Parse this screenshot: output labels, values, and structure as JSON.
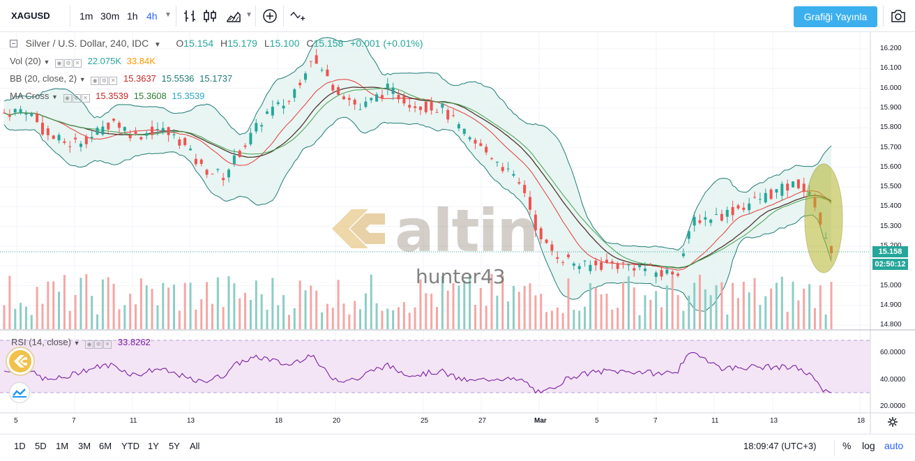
{
  "toolbar": {
    "symbol": "XAGUSD",
    "timeframes": [
      "1m",
      "30m",
      "1h",
      "4h"
    ],
    "active_timeframe": "4h",
    "publish_label": "Grafiği Yayınla"
  },
  "legend": {
    "main": {
      "title": "Silver / U.S. Dollar, 240, IDC",
      "o_label": "O",
      "o": "15.154",
      "h_label": "H",
      "h": "15.179",
      "l_label": "L",
      "l": "15.100",
      "c_label": "C",
      "c": "15.158",
      "change": "+0.001 (+0.01%)"
    },
    "vol": {
      "label": "Vol (20)",
      "v1": "22.075K",
      "v2": "33.84K"
    },
    "bb": {
      "label": "BB (20, close, 2)",
      "v1": "15.3637",
      "v2": "15.5536",
      "v3": "15.1737"
    },
    "ma": {
      "label": "MA Cross",
      "v1": "15.3539",
      "v2": "15.3608",
      "v3": "15.3539"
    },
    "rsi": {
      "label": "RSI (14, close)",
      "value": "33.8262"
    }
  },
  "price_axis": {
    "ticks": [
      "16.200",
      "16.100",
      "16.000",
      "15.900",
      "15.800",
      "15.700",
      "15.600",
      "15.500",
      "15.400",
      "15.300",
      "15.200",
      "15.100",
      "15.000",
      "14.900",
      "14.800"
    ],
    "current_price": "15.158",
    "countdown": "02:50:12"
  },
  "rsi_axis": {
    "ticks": [
      "60.0000",
      "40.0000",
      "20.0000"
    ]
  },
  "time_axis": {
    "ticks": [
      "5",
      "7",
      "11",
      "13",
      "18",
      "20",
      "25",
      "27",
      "Mar",
      "5",
      "7",
      "11",
      "13",
      "18"
    ]
  },
  "watermark": {
    "brand": "altin",
    "user": "hunter43"
  },
  "bottom_bar": {
    "ranges": [
      "1D",
      "5D",
      "1M",
      "3M",
      "6M",
      "YTD",
      "1Y",
      "5Y",
      "All"
    ],
    "clock": "18:09:47 (UTC+3)",
    "percent": "%",
    "log": "log",
    "auto": "auto"
  },
  "colors": {
    "up": "#26a69a",
    "down": "#ef5350",
    "bb_band": "#1e7b74",
    "bb_fill": "#e4f3f1",
    "ma_fast": "#e53935",
    "ma_slow": "#43a047",
    "ma_long": "#4e342e",
    "rsi_line": "#7b1fa2",
    "rsi_fill": "#f3e5f5",
    "publish": "#3cb0ee",
    "highlight": "#b5b52b"
  }
}
